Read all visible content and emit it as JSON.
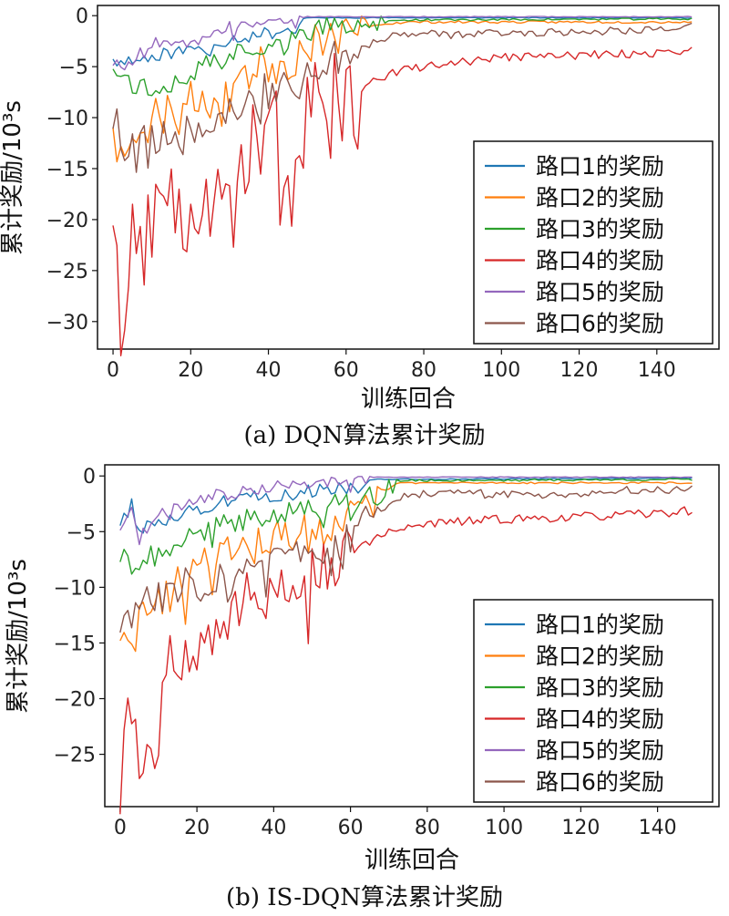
{
  "chart_data": [
    {
      "id": "a",
      "type": "line",
      "caption": "(a) DQN算法累计奖励",
      "xlabel": "训练回合",
      "ylabel": "累计奖励/10³s",
      "xlim": [
        -4,
        156
      ],
      "ylim": [
        -32.7,
        1.0
      ],
      "xticks": [
        0,
        20,
        40,
        60,
        80,
        100,
        120,
        140
      ],
      "yticks": [
        0,
        -5,
        -10,
        -15,
        -20,
        -25,
        -30
      ],
      "legend_position": "lower-right",
      "series": [
        {
          "name": "路口1的奖励",
          "color": "#1f77b4",
          "anchors": [
            [
              0,
              -3.8
            ],
            [
              5,
              -4.4
            ],
            [
              10,
              -3.8
            ],
            [
              20,
              -3.2
            ],
            [
              30,
              -2.2
            ],
            [
              40,
              -1.6
            ],
            [
              46,
              -1.2
            ],
            [
              49,
              -0.2
            ],
            [
              149,
              -0.2
            ]
          ],
          "noise": 0.8,
          "noise_until": 50,
          "after_noise": 0.05,
          "seed": 11
        },
        {
          "name": "路口2的奖励",
          "color": "#ff7f0e",
          "anchors": [
            [
              0,
              -9.5
            ],
            [
              1,
              -14.2
            ],
            [
              5,
              -10.5
            ],
            [
              10,
              -9.5
            ],
            [
              20,
              -8.0
            ],
            [
              30,
              -5.5
            ],
            [
              40,
              -4.5
            ],
            [
              46,
              -4.0
            ],
            [
              50,
              -2.0
            ],
            [
              58,
              -1.5
            ],
            [
              65,
              -1.0
            ],
            [
              75,
              -0.6
            ],
            [
              149,
              -0.6
            ]
          ],
          "noise": 2.6,
          "noise_until": 66,
          "after_noise": 0.15,
          "seed": 23
        },
        {
          "name": "路口3的奖励",
          "color": "#2ca02c",
          "anchors": [
            [
              0,
              -4.5
            ],
            [
              5,
              -6.5
            ],
            [
              10,
              -7.0
            ],
            [
              20,
              -5.5
            ],
            [
              30,
              -3.5
            ],
            [
              40,
              -2.5
            ],
            [
              48,
              -2.0
            ],
            [
              52,
              -1.0
            ],
            [
              65,
              -0.8
            ],
            [
              75,
              -0.4
            ],
            [
              149,
              -0.3
            ]
          ],
          "noise": 1.3,
          "noise_until": 70,
          "after_noise": 0.12,
          "seed": 37
        },
        {
          "name": "路口4的奖励",
          "color": "#d62728",
          "anchors": [
            [
              0,
              -17.0
            ],
            [
              2,
              -31.0
            ],
            [
              5,
              -22.0
            ],
            [
              10,
              -20.0
            ],
            [
              20,
              -17.0
            ],
            [
              30,
              -14.0
            ],
            [
              40,
              -12.0
            ],
            [
              48,
              -9.0
            ],
            [
              55,
              -8.0
            ],
            [
              62,
              -7.5
            ],
            [
              66,
              -6.5
            ],
            [
              72,
              -5.5
            ],
            [
              80,
              -4.9
            ],
            [
              100,
              -4.0
            ],
            [
              120,
              -3.8
            ],
            [
              140,
              -3.6
            ],
            [
              149,
              -3.2
            ]
          ],
          "noise": 6.5,
          "noise_until": 64,
          "after_noise": 0.5,
          "seed": 51
        },
        {
          "name": "路口5的奖励",
          "color": "#9467bd",
          "anchors": [
            [
              0,
              -4.5
            ],
            [
              5,
              -4.3
            ],
            [
              10,
              -2.5
            ],
            [
              20,
              -2.0
            ],
            [
              30,
              -1.0
            ],
            [
              40,
              -0.8
            ],
            [
              46,
              -0.5
            ],
            [
              50,
              -0.1
            ],
            [
              149,
              -0.1
            ]
          ],
          "noise": 0.7,
          "noise_until": 50,
          "after_noise": 0.04,
          "seed": 67
        },
        {
          "name": "路口6的奖励",
          "color": "#8c564b",
          "anchors": [
            [
              0,
              -9.8
            ],
            [
              5,
              -12.5
            ],
            [
              10,
              -12.0
            ],
            [
              20,
              -10.5
            ],
            [
              30,
              -8.5
            ],
            [
              40,
              -7.0
            ],
            [
              48,
              -5.5
            ],
            [
              55,
              -4.0
            ],
            [
              62,
              -3.0
            ],
            [
              68,
              -2.5
            ],
            [
              75,
              -1.6
            ],
            [
              85,
              -1.8
            ],
            [
              100,
              -1.6
            ],
            [
              120,
              -1.5
            ],
            [
              140,
              -1.2
            ],
            [
              149,
              -1.0
            ]
          ],
          "noise": 2.4,
          "noise_until": 66,
          "after_noise": 0.5,
          "seed": 79
        }
      ]
    },
    {
      "id": "b",
      "type": "line",
      "caption": "(b) IS-DQN算法累计奖励",
      "xlabel": "训练回合",
      "ylabel": "累计奖励/10³s",
      "xlim": [
        -4,
        156
      ],
      "ylim": [
        -29.7,
        1.0
      ],
      "xticks": [
        0,
        20,
        40,
        60,
        80,
        100,
        120,
        140
      ],
      "yticks": [
        0,
        -5,
        -10,
        -15,
        -20,
        -25
      ],
      "legend_position": "lower-right",
      "series": [
        {
          "name": "路口1的奖励",
          "color": "#1f77b4",
          "anchors": [
            [
              0,
              -4.0
            ],
            [
              3,
              -2.5
            ],
            [
              5,
              -5.0
            ],
            [
              10,
              -3.8
            ],
            [
              20,
              -2.8
            ],
            [
              30,
              -2.0
            ],
            [
              40,
              -1.6
            ],
            [
              50,
              -1.2
            ],
            [
              60,
              -1.0
            ],
            [
              66,
              -0.3
            ],
            [
              149,
              -0.2
            ]
          ],
          "noise": 0.8,
          "noise_until": 66,
          "after_noise": 0.05,
          "seed": 13
        },
        {
          "name": "路口2的奖励",
          "color": "#ff7f0e",
          "anchors": [
            [
              0,
              -13.5
            ],
            [
              3,
              -16.0
            ],
            [
              5,
              -13.0
            ],
            [
              10,
              -11.0
            ],
            [
              20,
              -8.0
            ],
            [
              30,
              -6.5
            ],
            [
              40,
              -5.5
            ],
            [
              50,
              -4.5
            ],
            [
              60,
              -3.5
            ],
            [
              66,
              -2.5
            ],
            [
              72,
              -0.6
            ],
            [
              149,
              -0.6
            ]
          ],
          "noise": 2.3,
          "noise_until": 70,
          "after_noise": 0.1,
          "seed": 29
        },
        {
          "name": "路口3的奖励",
          "color": "#2ca02c",
          "anchors": [
            [
              0,
              -7.0
            ],
            [
              5,
              -8.0
            ],
            [
              10,
              -6.5
            ],
            [
              20,
              -5.0
            ],
            [
              30,
              -4.0
            ],
            [
              40,
              -3.0
            ],
            [
              50,
              -2.8
            ],
            [
              60,
              -2.2
            ],
            [
              68,
              -1.5
            ],
            [
              72,
              -0.4
            ],
            [
              149,
              -0.3
            ]
          ],
          "noise": 1.3,
          "noise_until": 72,
          "after_noise": 0.12,
          "seed": 41
        },
        {
          "name": "路口4的奖励",
          "color": "#d62728",
          "anchors": [
            [
              0,
              -28.0
            ],
            [
              2,
              -18.0
            ],
            [
              5,
              -24.0
            ],
            [
              9,
              -25.0
            ],
            [
              12,
              -16.0
            ],
            [
              20,
              -14.0
            ],
            [
              30,
              -11.5
            ],
            [
              40,
              -9.5
            ],
            [
              50,
              -8.0
            ],
            [
              60,
              -6.5
            ],
            [
              70,
              -5.0
            ],
            [
              80,
              -4.2
            ],
            [
              100,
              -3.8
            ],
            [
              120,
              -3.6
            ],
            [
              140,
              -3.3
            ],
            [
              149,
              -3.0
            ]
          ],
          "noise": 3.5,
          "noise_until": 62,
          "after_noise": 0.5,
          "seed": 53
        },
        {
          "name": "路口5的奖励",
          "color": "#9467bd",
          "anchors": [
            [
              0,
              -4.5
            ],
            [
              3,
              -3.2
            ],
            [
              5,
              -5.5
            ],
            [
              10,
              -3.5
            ],
            [
              20,
              -2.0
            ],
            [
              30,
              -1.2
            ],
            [
              40,
              -0.8
            ],
            [
              50,
              -0.6
            ],
            [
              60,
              -0.4
            ],
            [
              66,
              -0.1
            ],
            [
              149,
              -0.1
            ]
          ],
          "noise": 0.7,
          "noise_until": 66,
          "after_noise": 0.04,
          "seed": 71
        },
        {
          "name": "路口6的奖励",
          "color": "#8c564b",
          "anchors": [
            [
              0,
              -13.0
            ],
            [
              5,
              -11.5
            ],
            [
              10,
              -10.5
            ],
            [
              20,
              -9.0
            ],
            [
              30,
              -8.5
            ],
            [
              40,
              -7.0
            ],
            [
              50,
              -6.5
            ],
            [
              58,
              -6.0
            ],
            [
              62,
              -4.0
            ],
            [
              70,
              -2.5
            ],
            [
              75,
              -1.5
            ],
            [
              90,
              -1.5
            ],
            [
              110,
              -1.6
            ],
            [
              130,
              -1.3
            ],
            [
              149,
              -1.0
            ]
          ],
          "noise": 2.0,
          "noise_until": 66,
          "after_noise": 0.5,
          "seed": 83
        }
      ]
    }
  ]
}
